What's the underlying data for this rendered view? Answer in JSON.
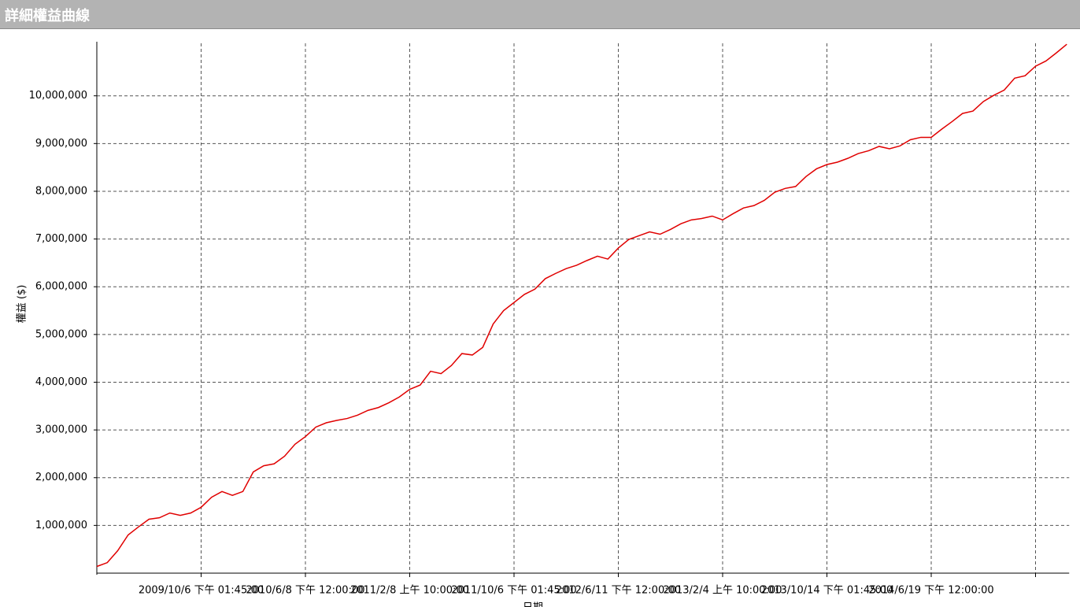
{
  "chart_data": {
    "type": "line",
    "title": "詳細權益曲線",
    "y_label": "權益 ($)",
    "x_label": "日期",
    "color": "#e00000",
    "categories": [
      null,
      null,
      null,
      null,
      null,
      null,
      null,
      null,
      null,
      null,
      "2009/10/6 下午 01:45:00",
      null,
      null,
      null,
      null,
      null,
      null,
      null,
      null,
      null,
      "2010/6/8 下午 12:00:00",
      null,
      null,
      null,
      null,
      null,
      null,
      null,
      null,
      null,
      "2011/2/8 上午 10:00:00",
      null,
      null,
      null,
      null,
      null,
      null,
      null,
      null,
      null,
      "2011/10/6 下午 01:45:00",
      null,
      null,
      null,
      null,
      null,
      null,
      null,
      null,
      null,
      "2012/6/11 下午 12:00:00",
      null,
      null,
      null,
      null,
      null,
      null,
      null,
      null,
      null,
      "2013/2/4 上午 10:00:00",
      null,
      null,
      null,
      null,
      null,
      null,
      null,
      null,
      null,
      "2013/10/14 下午 01:45:00",
      null,
      null,
      null,
      null,
      null,
      null,
      null,
      null,
      null,
      "2014/6/19 下午 12:00:00",
      null,
      null,
      null,
      null,
      null,
      null,
      null,
      null,
      null,
      null,
      null,
      null,
      null
    ],
    "values": [
      140000,
      220000,
      470000,
      800000,
      970000,
      1130000,
      1160000,
      1260000,
      1210000,
      1260000,
      1380000,
      1590000,
      1710000,
      1630000,
      1710000,
      2120000,
      2250000,
      2290000,
      2450000,
      2700000,
      2860000,
      3060000,
      3150000,
      3200000,
      3240000,
      3310000,
      3410000,
      3470000,
      3570000,
      3690000,
      3850000,
      3940000,
      4230000,
      4180000,
      4350000,
      4600000,
      4570000,
      4730000,
      5220000,
      5500000,
      5670000,
      5840000,
      5950000,
      6170000,
      6280000,
      6380000,
      6450000,
      6550000,
      6640000,
      6580000,
      6810000,
      6990000,
      7070000,
      7150000,
      7100000,
      7200000,
      7320000,
      7400000,
      7430000,
      7480000,
      7400000,
      7530000,
      7650000,
      7700000,
      7810000,
      7980000,
      8060000,
      8100000,
      8310000,
      8470000,
      8560000,
      8610000,
      8690000,
      8790000,
      8850000,
      8940000,
      8890000,
      8950000,
      9080000,
      9130000,
      9130000,
      9300000,
      9460000,
      9630000,
      9680000,
      9880000,
      10010000,
      10120000,
      10370000,
      10420000,
      10620000,
      10730000,
      10900000,
      11080000
    ],
    "ylim": [
      0,
      11100000
    ],
    "yticks": [
      {
        "value": 1000000,
        "label": "1,000,000"
      },
      {
        "value": 2000000,
        "label": "2,000,000"
      },
      {
        "value": 3000000,
        "label": "3,000,000"
      },
      {
        "value": 4000000,
        "label": "4,000,000"
      },
      {
        "value": 5000000,
        "label": "5,000,000"
      },
      {
        "value": 6000000,
        "label": "6,000,000"
      },
      {
        "value": 7000000,
        "label": "7,000,000"
      },
      {
        "value": 8000000,
        "label": "8,000,000"
      },
      {
        "value": 9000000,
        "label": "9,000,000"
      },
      {
        "value": 10000000,
        "label": "10,000,000"
      }
    ],
    "grid": true
  }
}
